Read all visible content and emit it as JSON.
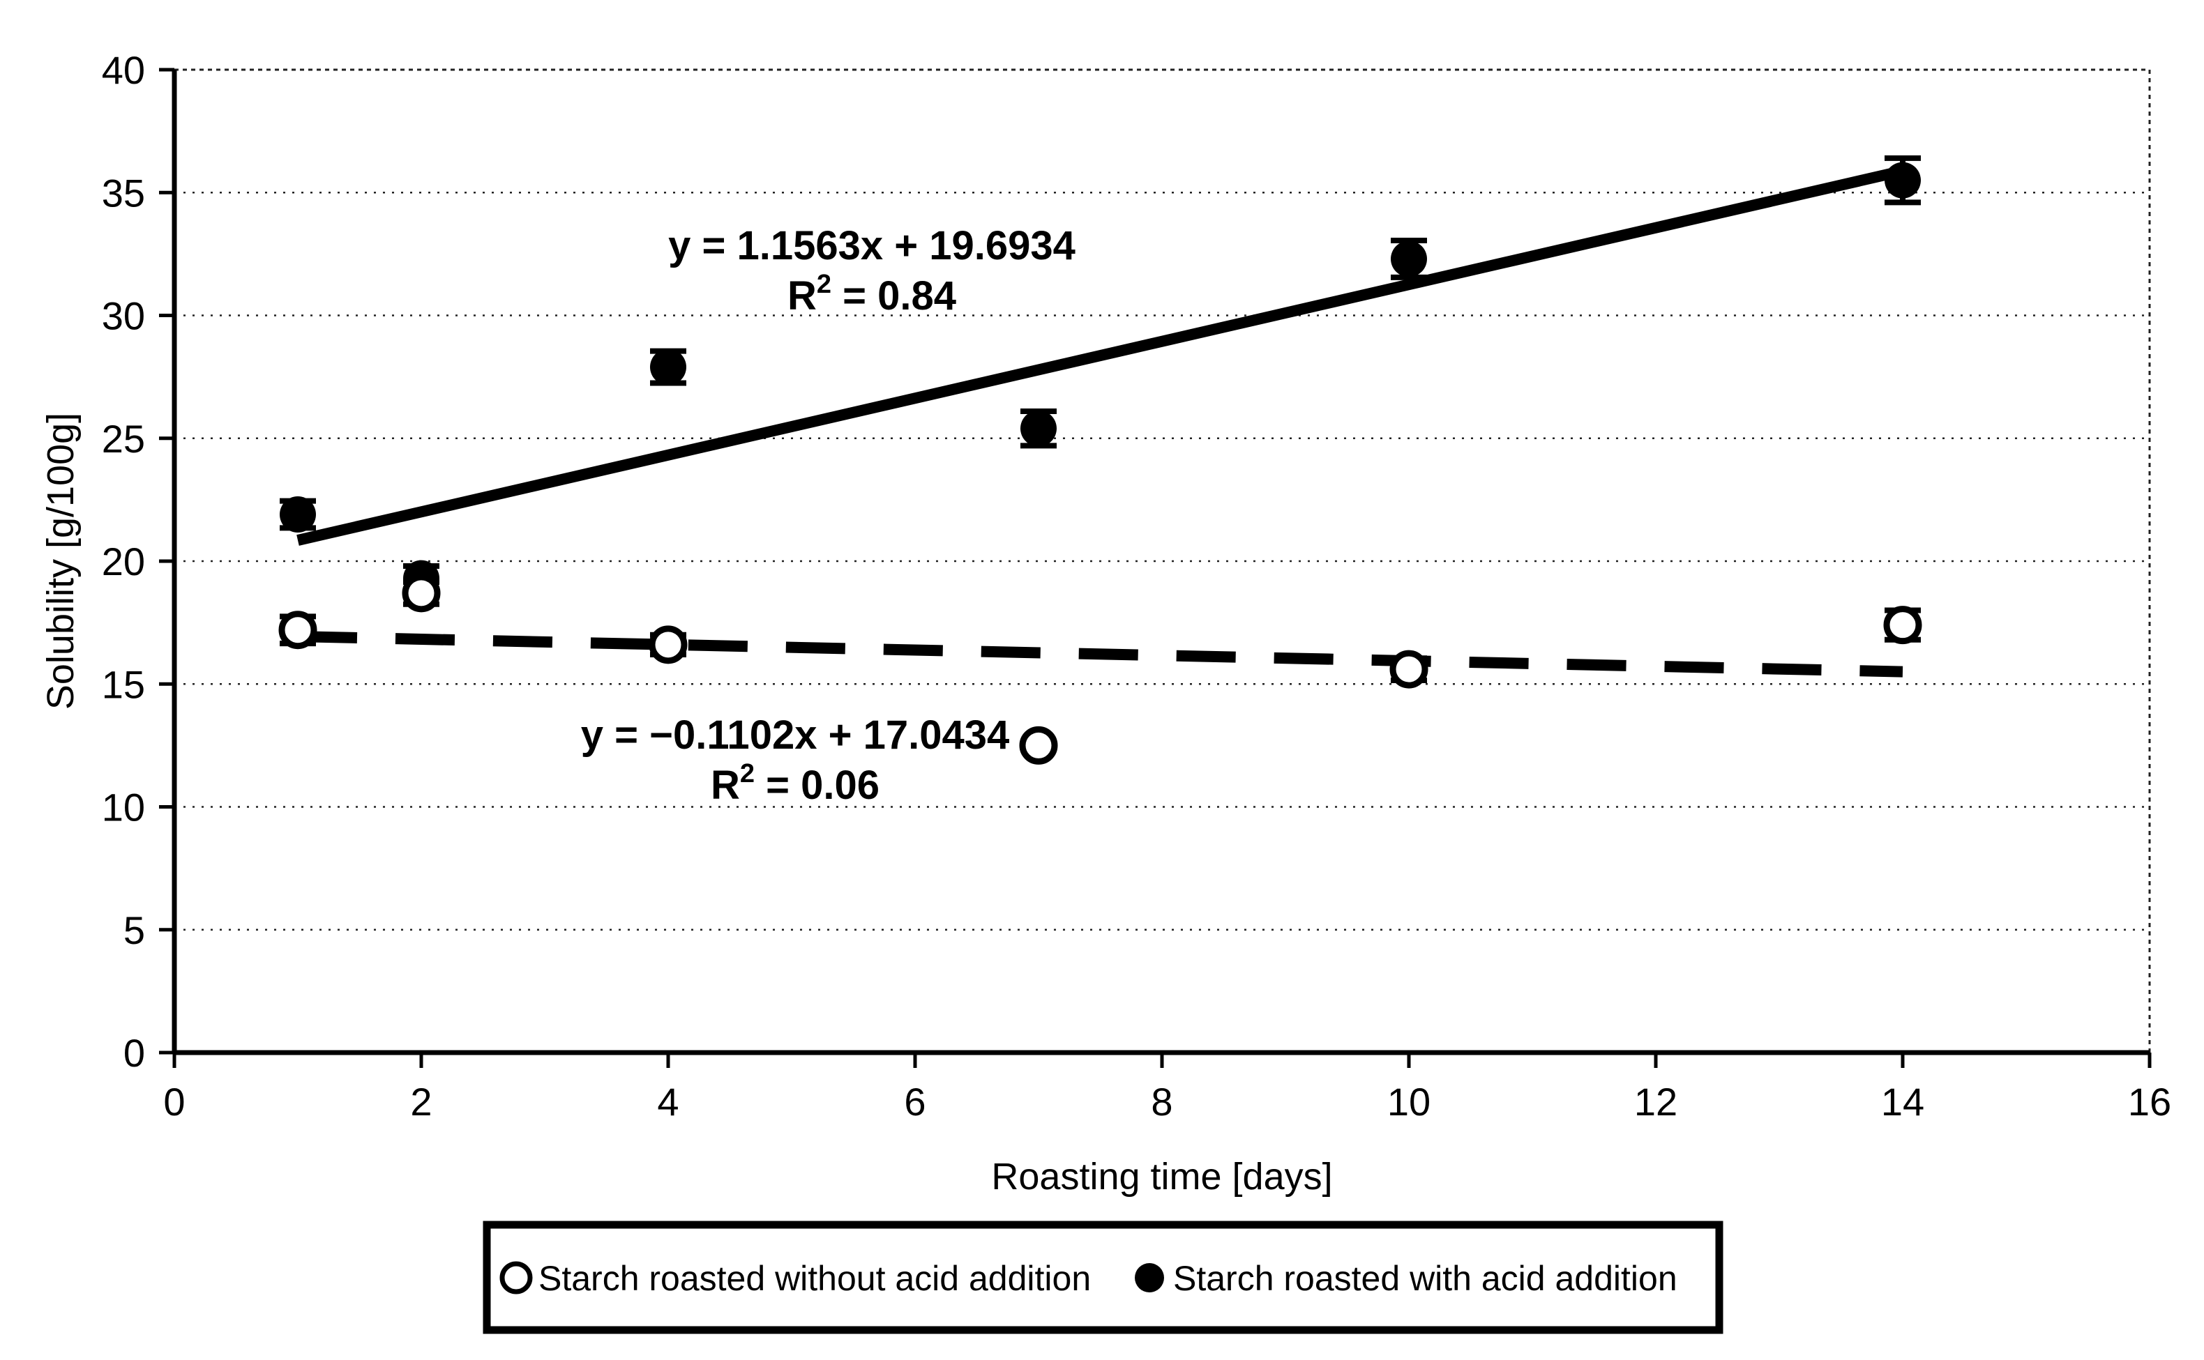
{
  "figure": {
    "background": "#ffffff",
    "ink_color": "#000000"
  },
  "chart_data": {
    "type": "scatter",
    "title": "",
    "xlabel": "Roasting time [days]",
    "ylabel": "Solubility [g/100g]",
    "xlim": [
      0,
      16
    ],
    "ylim": [
      0,
      40
    ],
    "x_ticks": [
      0,
      2,
      4,
      6,
      8,
      10,
      12,
      14,
      16
    ],
    "y_ticks": [
      0,
      5,
      10,
      15,
      20,
      25,
      30,
      35,
      40
    ],
    "grid": "horizontal-dotted",
    "legend_position": "bottom",
    "series": [
      {
        "name": "Starch roasted without acid addition",
        "marker": "open-circle",
        "x": [
          1,
          2,
          4,
          7,
          10,
          14
        ],
        "y": [
          17.2,
          18.7,
          16.6,
          12.5,
          15.6,
          17.4
        ],
        "yerr": [
          0.55,
          0.45,
          0.4,
          0,
          0.45,
          0.6
        ],
        "trendline": {
          "style": "dashed",
          "slope": -0.1102,
          "intercept": 17.0434,
          "r2": 0.06,
          "x_start": 1,
          "x_end": 14
        }
      },
      {
        "name": "Starch roasted with acid addition",
        "marker": "filled-circle",
        "x": [
          1,
          2,
          4,
          7,
          10,
          14
        ],
        "y": [
          21.9,
          19.3,
          27.9,
          25.4,
          32.3,
          35.5
        ],
        "yerr": [
          0.55,
          0.5,
          0.65,
          0.7,
          0.75,
          0.9
        ],
        "trendline": {
          "style": "solid",
          "slope": 1.1563,
          "intercept": 19.6934,
          "r2": 0.84,
          "x_start": 1,
          "x_end": 14
        }
      }
    ],
    "annotations": {
      "with_acid": {
        "line1": "y = 1.1563x + 19.6934",
        "r2_base": "R",
        "r2_sup": "2",
        "r2_rest": " = 0.84"
      },
      "without_acid": {
        "line1": "y = −0.1102x + 17.0434",
        "r2_base": "R",
        "r2_sup": "2",
        "r2_rest": " = 0.06"
      }
    },
    "legend": {
      "entries": [
        "Starch roasted without acid addition",
        "Starch roasted with acid addition"
      ]
    }
  }
}
